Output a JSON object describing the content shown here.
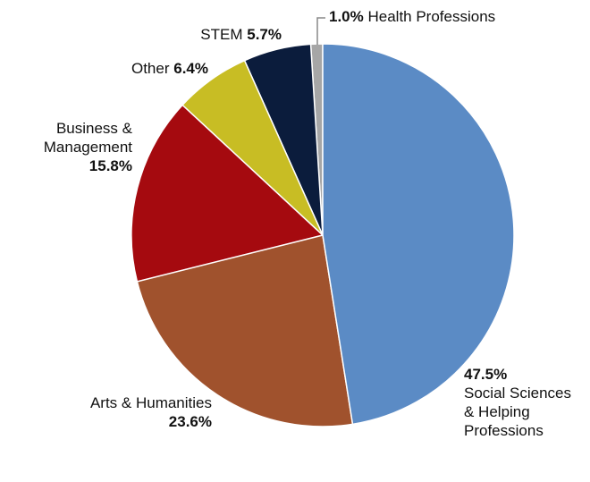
{
  "chart_data": {
    "type": "pie",
    "categories": [
      "Social Sciences & Helping Professions",
      "Arts & Humanities",
      "Business & Management",
      "Other",
      "STEM",
      "Health Professions"
    ],
    "values": [
      47.5,
      23.6,
      15.8,
      6.4,
      5.7,
      1.0
    ],
    "value_labels": [
      "47.5%",
      "23.6%",
      "15.8%",
      "6.4%",
      "5.7%",
      "1.0%"
    ],
    "colors": [
      "#5b8bc5",
      "#a0522d",
      "#a50a0f",
      "#c8bd24",
      "#0b1c3c",
      "#a6a6a6"
    ]
  }
}
